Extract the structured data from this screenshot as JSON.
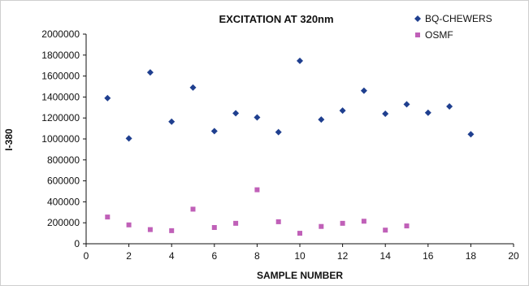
{
  "chart_data": {
    "type": "scatter",
    "title": "EXCITATION AT 320nm",
    "xlabel": "SAMPLE NUMBER",
    "ylabel": "I-380",
    "xlim": [
      0,
      20
    ],
    "ylim": [
      0,
      2000000
    ],
    "x_ticks": [
      0,
      2,
      4,
      6,
      8,
      10,
      12,
      14,
      16,
      18,
      20
    ],
    "y_ticks": [
      0,
      200000,
      400000,
      600000,
      800000,
      1000000,
      1200000,
      1400000,
      1600000,
      1800000,
      2000000
    ],
    "grid": false,
    "legend_position": "top-right",
    "series": [
      {
        "name": "BQ-CHEWERS",
        "marker": "diamond",
        "color": "#1f3f8f",
        "x": [
          1,
          2,
          3,
          4,
          5,
          6,
          7,
          8,
          9,
          10,
          11,
          12,
          13,
          14,
          15,
          16,
          17,
          18
        ],
        "y": [
          1390000,
          1005000,
          1635000,
          1165000,
          1490000,
          1075000,
          1245000,
          1205000,
          1065000,
          1745000,
          1185000,
          1270000,
          1460000,
          1240000,
          1330000,
          1250000,
          1310000,
          1045000
        ]
      },
      {
        "name": "OSMF",
        "marker": "square",
        "color": "#c060b8",
        "x": [
          1,
          2,
          3,
          4,
          5,
          6,
          7,
          8,
          9,
          10,
          11,
          12,
          13,
          14,
          15
        ],
        "y": [
          255000,
          180000,
          135000,
          125000,
          330000,
          155000,
          195000,
          515000,
          210000,
          100000,
          165000,
          195000,
          215000,
          130000,
          170000
        ]
      }
    ]
  }
}
